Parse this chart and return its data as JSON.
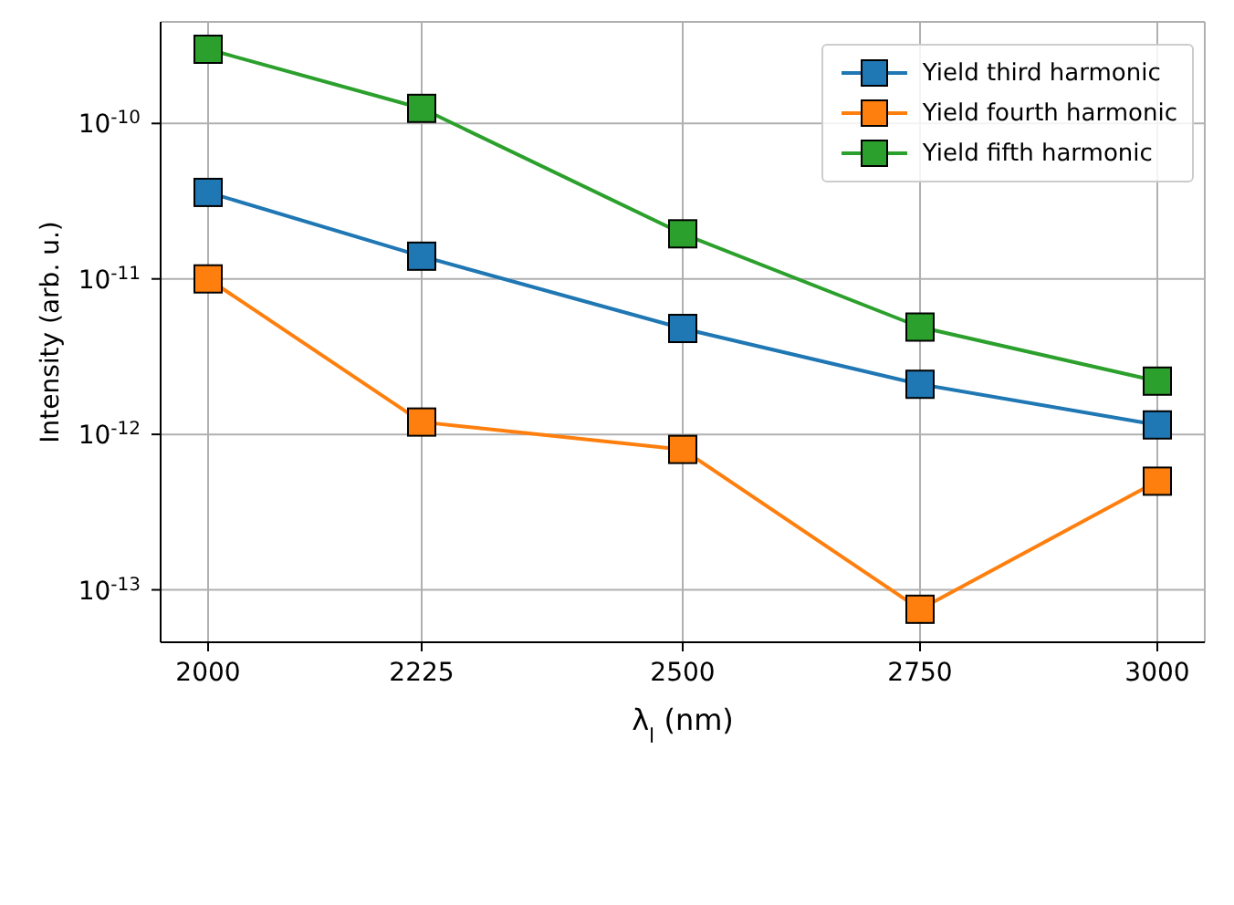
{
  "chart_data": {
    "type": "line",
    "xlabel": "λ$_{l}$ (nm)",
    "ylabel": "Intensity (arb. u.)",
    "x": [
      2000,
      2225,
      2500,
      2750,
      3000
    ],
    "series": [
      {
        "name": "Yield third harmonic",
        "color": "#1f77b4",
        "values": [
          3.6e-11,
          1.4e-11,
          4.8e-12,
          2.1e-12,
          1.15e-12
        ]
      },
      {
        "name": "Yield fourth harmonic",
        "color": "#ff7f0e",
        "values": [
          1e-11,
          1.2e-12,
          8e-13,
          7.5e-14,
          5e-13
        ]
      },
      {
        "name": "Yield fifth harmonic",
        "color": "#2ca02c",
        "values": [
          3e-10,
          1.25e-10,
          1.95e-11,
          4.9e-12,
          2.2e-12
        ]
      }
    ],
    "xlim": [
      1950,
      3050
    ],
    "xticks": [
      2000,
      2225,
      2500,
      2750,
      3000
    ],
    "ylim": [
      4.6e-14,
      4.5e-10
    ],
    "yticks": [
      {
        "value": 1e-13,
        "label": "10$^{-13}$"
      },
      {
        "value": 1e-12,
        "label": "10$^{-12}$"
      },
      {
        "value": 1e-11,
        "label": "10$^{-11}$"
      },
      {
        "value": 1e-10,
        "label": "10$^{-10}$"
      }
    ],
    "log": "y",
    "grid": true,
    "legend": "top right",
    "marker": "square",
    "line_style": "solid"
  }
}
